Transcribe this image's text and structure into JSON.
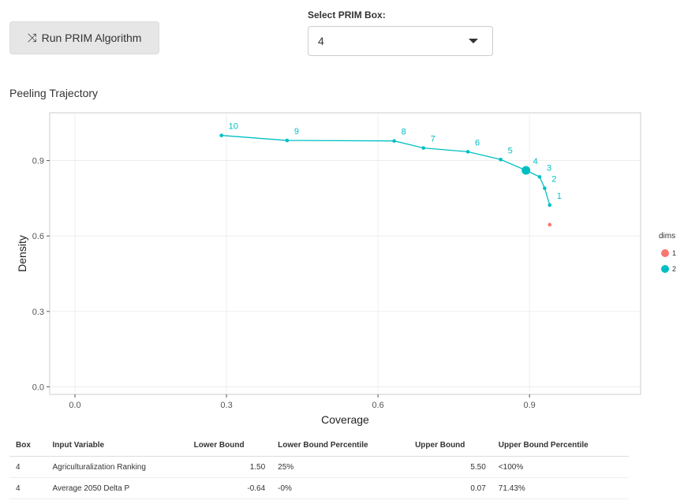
{
  "controls": {
    "run_button_icon": "shuffle-icon",
    "run_button_label": "Run PRIM Algorithm",
    "select_label": "Select PRIM Box:",
    "select_value": "4"
  },
  "plot_title": "Peeling Trajectory",
  "colors": {
    "series1": "#F8766D",
    "series2": "#00BFC4",
    "panel_border": "#cccccc",
    "grid": "#ebebeb"
  },
  "chart_data": {
    "type": "scatter",
    "title": "",
    "xlabel": "Coverage",
    "ylabel": "Density",
    "xlim": [
      -0.05,
      1.12
    ],
    "ylim": [
      -0.03,
      1.09
    ],
    "xticks": [
      0.0,
      0.3,
      0.6,
      0.9
    ],
    "xtick_labels": [
      "0.0",
      "0.3",
      "0.6",
      "0.9"
    ],
    "yticks": [
      0.0,
      0.3,
      0.6,
      0.9
    ],
    "ytick_labels": [
      "0.0",
      "0.3",
      "0.6",
      "0.9"
    ],
    "grid": true,
    "legend_title": "dims",
    "legend_position": "right",
    "selected_box": "4",
    "series": [
      {
        "name": "1",
        "color": "#F8766D",
        "points": [
          {
            "x": 0.94,
            "y": 0.645,
            "label": ""
          }
        ]
      },
      {
        "name": "2",
        "color": "#00BFC4",
        "points": [
          {
            "x": 0.94,
            "y": 0.723,
            "label": "1"
          },
          {
            "x": 0.93,
            "y": 0.79,
            "label": "2"
          },
          {
            "x": 0.92,
            "y": 0.835,
            "label": "3"
          },
          {
            "x": 0.893,
            "y": 0.861,
            "label": "4"
          },
          {
            "x": 0.843,
            "y": 0.904,
            "label": "5"
          },
          {
            "x": 0.778,
            "y": 0.935,
            "label": "6"
          },
          {
            "x": 0.69,
            "y": 0.95,
            "label": "7"
          },
          {
            "x": 0.632,
            "y": 0.978,
            "label": "8"
          },
          {
            "x": 0.42,
            "y": 0.98,
            "label": "9"
          },
          {
            "x": 0.29,
            "y": 1.0,
            "label": "10"
          }
        ]
      }
    ]
  },
  "table": {
    "headers": [
      "Box",
      "Input Variable",
      "Lower Bound",
      "Lower Bound Percentile",
      "Upper Bound",
      "Upper Bound Percentile"
    ],
    "rows": [
      [
        "4",
        "Agriculturalization Ranking",
        "1.50",
        "25%",
        "5.50",
        "<100%"
      ],
      [
        "4",
        "Average 2050 Delta P",
        "-0.64",
        "-0%",
        "0.07",
        "71.43%"
      ]
    ]
  }
}
